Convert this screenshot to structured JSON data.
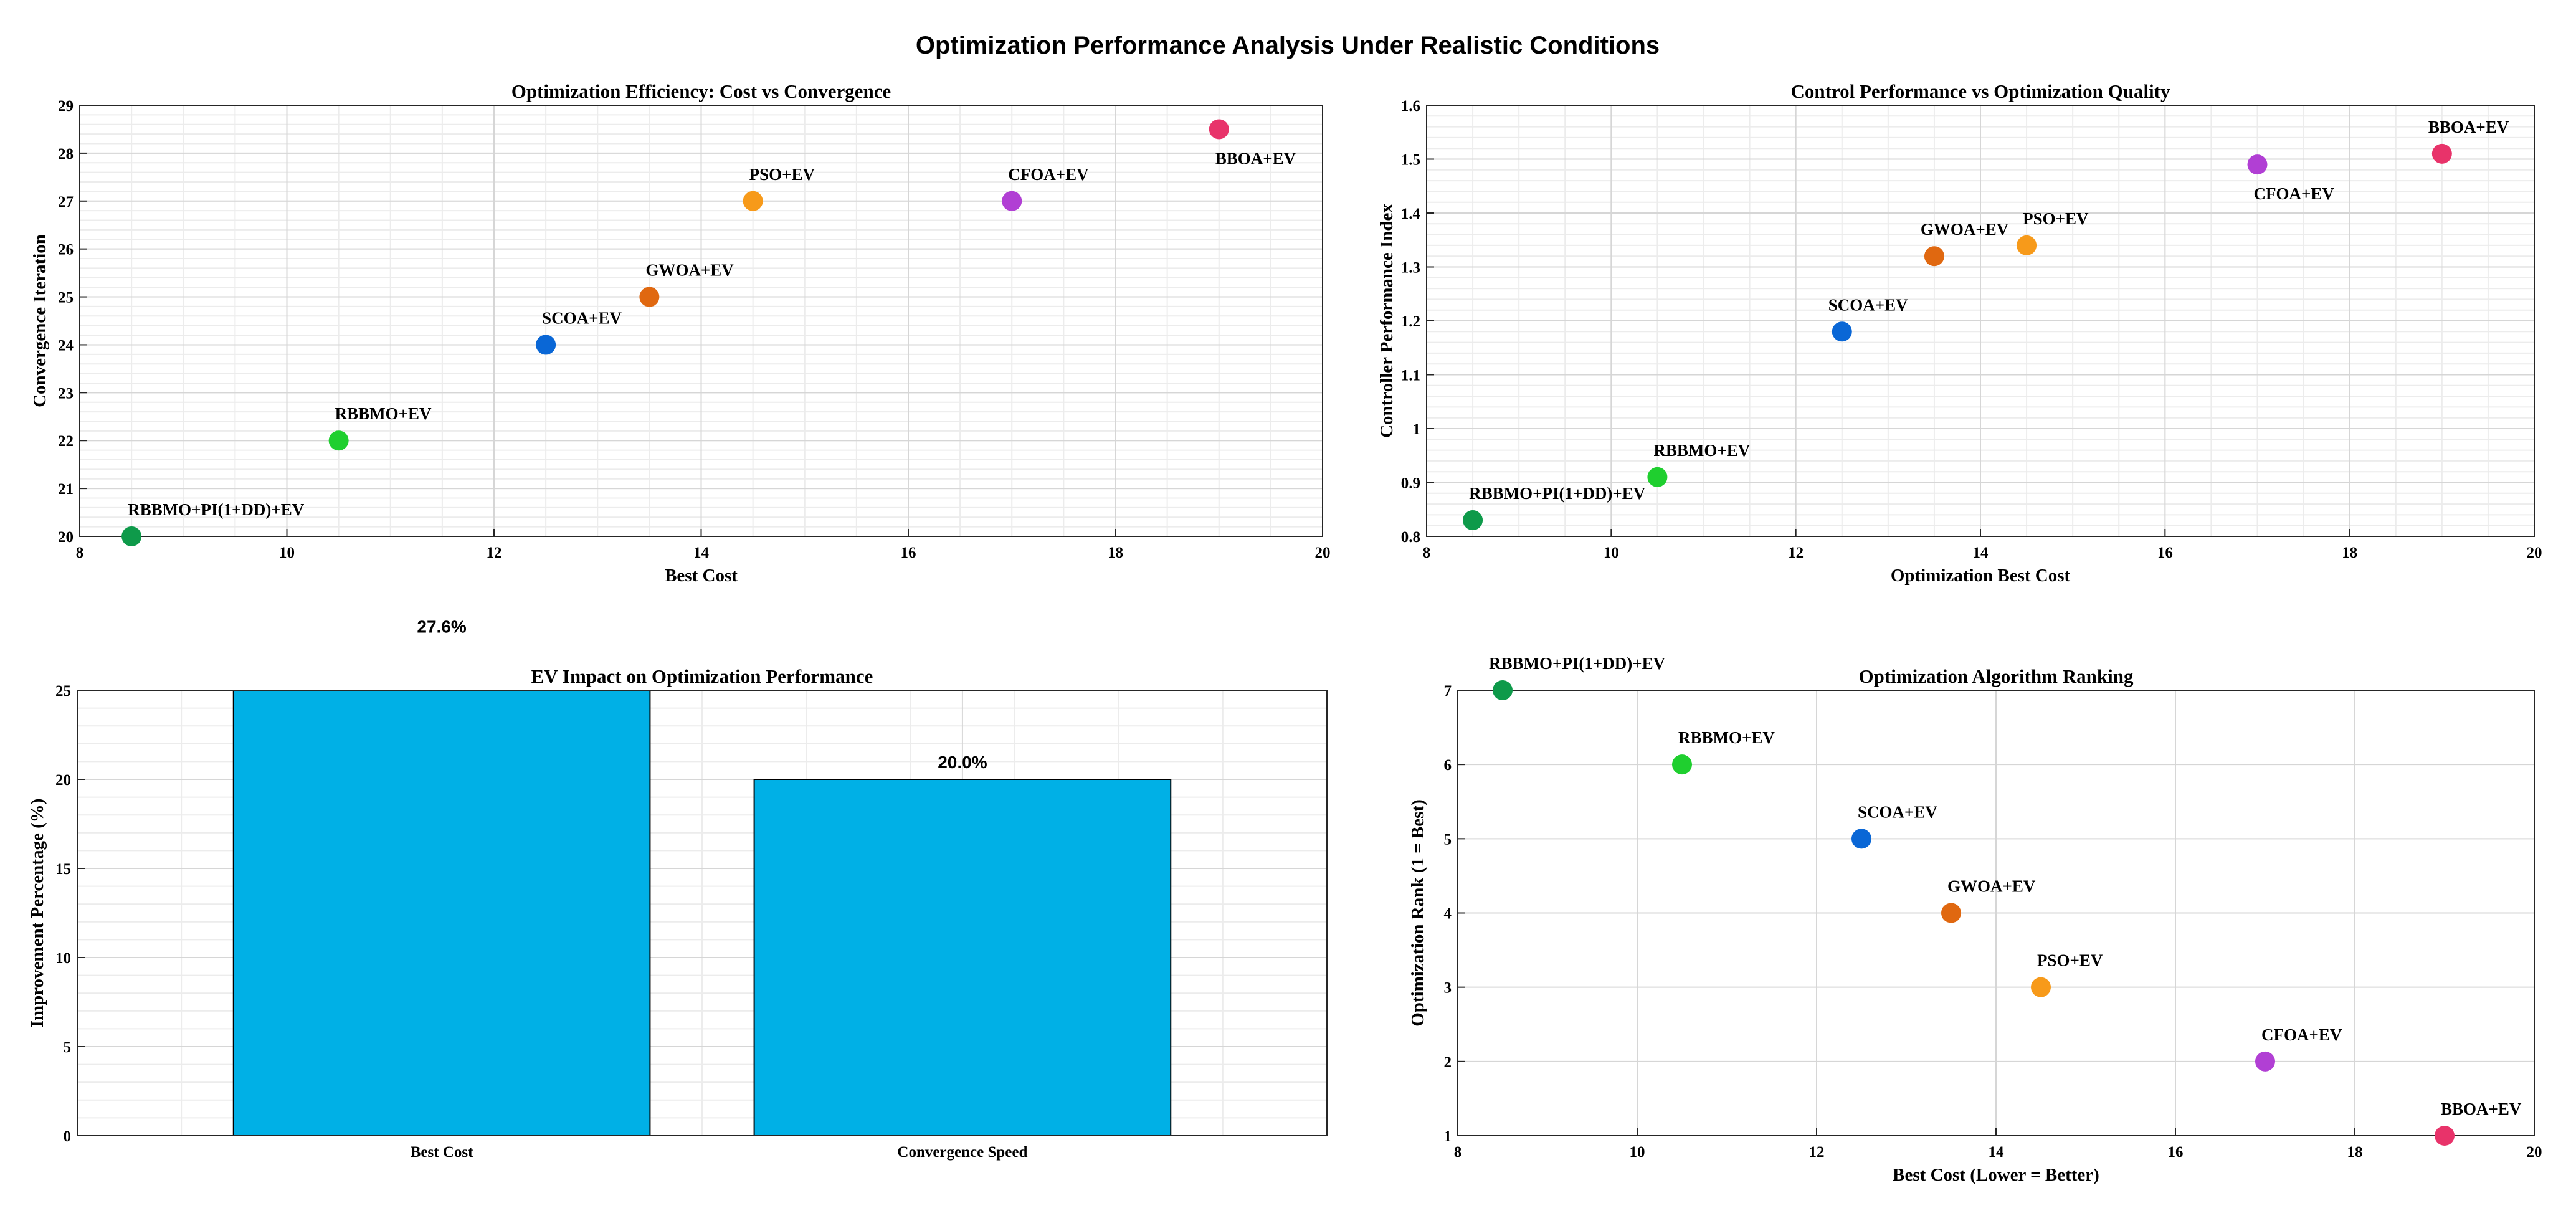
{
  "figure_title": "Optimization Performance Analysis Under Realistic Conditions",
  "colors": {
    "RBBMO+PI(1+DD)+EV": "#0e9a4a",
    "RBBMO+EV": "#1fcf2f",
    "SCOA+EV": "#0a67d6",
    "GWOA+EV": "#e06810",
    "PSO+EV": "#f79a1a",
    "CFOA+EV": "#b13fd4",
    "BBOA+EV": "#e8336a",
    "bar": "#00b0e6"
  },
  "chart_data": [
    {
      "type": "scatter",
      "title": "Optimization Efficiency: Cost vs Convergence",
      "xlabel": "Best Cost",
      "ylabel": "Convergence Iteration",
      "xlim": [
        8,
        20
      ],
      "ylim": [
        20,
        29
      ],
      "xticks": [
        8,
        10,
        12,
        14,
        16,
        18,
        20
      ],
      "yticks": [
        20,
        21,
        22,
        23,
        24,
        25,
        26,
        27,
        28,
        29
      ],
      "grid": "major+minor",
      "points": [
        {
          "label": "RBBMO+PI(1+DD)+EV",
          "x": 8.5,
          "y": 20,
          "label_pos": "above-right"
        },
        {
          "label": "RBBMO+EV",
          "x": 10.5,
          "y": 22,
          "label_pos": "above-right"
        },
        {
          "label": "SCOA+EV",
          "x": 12.5,
          "y": 24,
          "label_pos": "above-right"
        },
        {
          "label": "GWOA+EV",
          "x": 13.5,
          "y": 25,
          "label_pos": "above-right"
        },
        {
          "label": "PSO+EV",
          "x": 14.5,
          "y": 27,
          "label_pos": "above-right"
        },
        {
          "label": "CFOA+EV",
          "x": 17.0,
          "y": 27,
          "label_pos": "above-right"
        },
        {
          "label": "BBOA+EV",
          "x": 19.0,
          "y": 28.5,
          "label_pos": "below-right"
        }
      ]
    },
    {
      "type": "scatter",
      "title": "Control Performance vs Optimization Quality",
      "xlabel": "Optimization Best Cost",
      "ylabel": "Controller Performance Index",
      "xlim": [
        8,
        20
      ],
      "ylim": [
        0.8,
        1.6
      ],
      "xticks": [
        8,
        10,
        12,
        14,
        16,
        18,
        20
      ],
      "yticks": [
        0.8,
        0.9,
        1,
        1.1,
        1.2,
        1.3,
        1.4,
        1.5,
        1.6
      ],
      "grid": "major+minor",
      "points": [
        {
          "label": "RBBMO+PI(1+DD)+EV",
          "x": 8.5,
          "y": 0.83,
          "label_pos": "above-right"
        },
        {
          "label": "RBBMO+EV",
          "x": 10.5,
          "y": 0.91,
          "label_pos": "above-right"
        },
        {
          "label": "SCOA+EV",
          "x": 12.5,
          "y": 1.18,
          "label_pos": "above-left"
        },
        {
          "label": "GWOA+EV",
          "x": 13.5,
          "y": 1.32,
          "label_pos": "above-left"
        },
        {
          "label": "PSO+EV",
          "x": 14.5,
          "y": 1.34,
          "label_pos": "above-right"
        },
        {
          "label": "CFOA+EV",
          "x": 17.0,
          "y": 1.49,
          "label_pos": "below-right"
        },
        {
          "label": "BBOA+EV",
          "x": 19.0,
          "y": 1.51,
          "label_pos": "above-left"
        }
      ]
    },
    {
      "type": "bar",
      "title": "EV Impact on Optimization Performance",
      "xlabel": "",
      "ylabel": "Improvement Percentage (%)",
      "categories": [
        "Best Cost",
        "Convergence Speed"
      ],
      "values": [
        27.6,
        20.0
      ],
      "data_labels": [
        "27.6%",
        "20.0%"
      ],
      "xlim": [
        0.3,
        2.7
      ],
      "ylim": [
        0,
        25
      ],
      "yticks": [
        0,
        5,
        10,
        15,
        20,
        25
      ],
      "grid": "major+minor"
    },
    {
      "type": "scatter",
      "title": "Optimization Algorithm Ranking",
      "xlabel": "Best Cost (Lower = Better)",
      "ylabel": "Optimization Rank (1 = Best)",
      "xlim": [
        8,
        20
      ],
      "ylim": [
        1,
        7
      ],
      "xticks": [
        8,
        10,
        12,
        14,
        16,
        18,
        20
      ],
      "yticks": [
        1,
        2,
        3,
        4,
        5,
        6,
        7
      ],
      "grid": "major",
      "points": [
        {
          "label": "RBBMO+PI(1+DD)+EV",
          "x": 8.5,
          "y": 7,
          "label_pos": "above-left"
        },
        {
          "label": "RBBMO+EV",
          "x": 10.5,
          "y": 6,
          "label_pos": "above-right"
        },
        {
          "label": "SCOA+EV",
          "x": 12.5,
          "y": 5,
          "label_pos": "above-right"
        },
        {
          "label": "GWOA+EV",
          "x": 13.5,
          "y": 4,
          "label_pos": "above-right"
        },
        {
          "label": "PSO+EV",
          "x": 14.5,
          "y": 3,
          "label_pos": "above-right"
        },
        {
          "label": "CFOA+EV",
          "x": 17.0,
          "y": 2,
          "label_pos": "above-right"
        },
        {
          "label": "BBOA+EV",
          "x": 19.0,
          "y": 1,
          "label_pos": "above-right"
        }
      ]
    }
  ]
}
